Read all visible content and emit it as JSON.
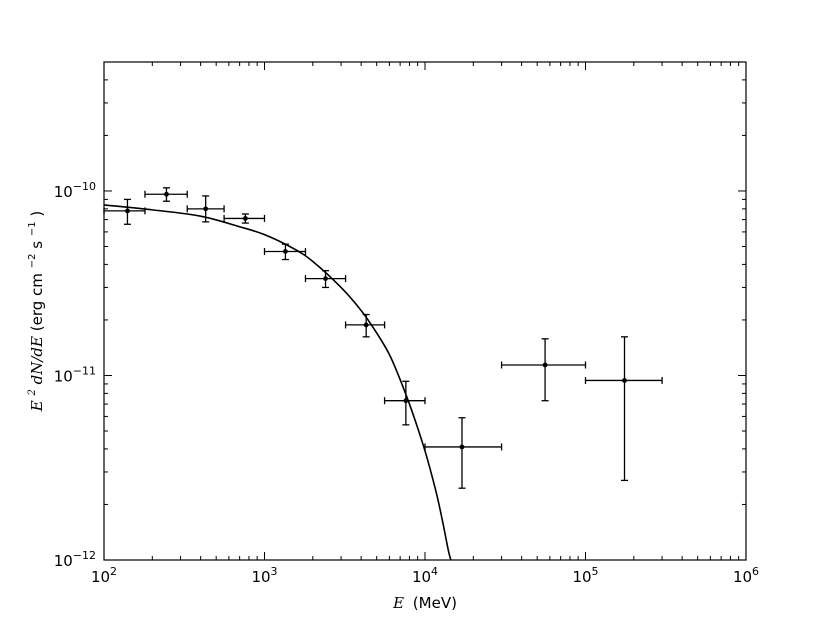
{
  "chart_data": {
    "type": "scatter",
    "xlabel": {
      "symbol": "E",
      "unit": "(MeV)"
    },
    "ylabel": {
      "symbol": "E",
      "sup": "2",
      "rest": " dN/dE",
      "unit_prefix": " (erg cm",
      "unit_exp1": "−2",
      "unit_mid": " s",
      "unit_exp2": "−1",
      "unit_suffix": ")"
    },
    "x_scale": "log",
    "y_scale": "log",
    "xlim": [
      100,
      1000000
    ],
    "ylim": [
      1e-12,
      5e-10
    ],
    "x_ticks": [
      {
        "value": 100,
        "base": "10",
        "exp": "2"
      },
      {
        "value": 1000,
        "base": "10",
        "exp": "3"
      },
      {
        "value": 10000,
        "base": "10",
        "exp": "4"
      },
      {
        "value": 100000,
        "base": "10",
        "exp": "5"
      },
      {
        "value": 1000000,
        "base": "10",
        "exp": "6"
      }
    ],
    "y_ticks": [
      {
        "value": 1e-12,
        "base": "10",
        "exp": "−12"
      },
      {
        "value": 1e-11,
        "base": "10",
        "exp": "−11"
      },
      {
        "value": 1e-10,
        "base": "10",
        "exp": "−10"
      }
    ],
    "grid": false,
    "points": [
      {
        "x": 140,
        "xlo": 100,
        "xhi": 180,
        "y": 7.8e-11,
        "ylo": 6.6e-11,
        "yhi": 9e-11
      },
      {
        "x": 245,
        "xlo": 180,
        "xhi": 330,
        "y": 9.6e-11,
        "ylo": 8.8e-11,
        "yhi": 1.04e-10
      },
      {
        "x": 430,
        "xlo": 330,
        "xhi": 560,
        "y": 8e-11,
        "ylo": 6.8e-11,
        "yhi": 9.4e-11
      },
      {
        "x": 760,
        "xlo": 560,
        "xhi": 1000,
        "y": 7.1e-11,
        "ylo": 6.7e-11,
        "yhi": 7.5e-11
      },
      {
        "x": 1350,
        "xlo": 1000,
        "xhi": 1800,
        "y": 4.7e-11,
        "ylo": 4.25e-11,
        "yhi": 5.15e-11
      },
      {
        "x": 2400,
        "xlo": 1800,
        "xhi": 3200,
        "y": 3.35e-11,
        "ylo": 3e-11,
        "yhi": 3.7e-11
      },
      {
        "x": 4300,
        "xlo": 3200,
        "xhi": 5600,
        "y": 1.88e-11,
        "ylo": 1.62e-11,
        "yhi": 2.14e-11
      },
      {
        "x": 7600,
        "xlo": 5600,
        "xhi": 10000,
        "y": 7.3e-12,
        "ylo": 5.4e-12,
        "yhi": 9.3e-12
      },
      {
        "x": 17000,
        "xlo": 10000,
        "xhi": 30000,
        "y": 4.1e-12,
        "ylo": 2.45e-12,
        "yhi": 5.9e-12
      },
      {
        "x": 56000,
        "xlo": 30000,
        "xhi": 100000,
        "y": 1.14e-11,
        "ylo": 7.3e-12,
        "yhi": 1.58e-11
      },
      {
        "x": 175000,
        "xlo": 100000,
        "xhi": 300000,
        "y": 9.4e-12,
        "ylo": 2.7e-12,
        "yhi": 1.62e-11
      }
    ],
    "fit_curve": [
      {
        "x": 100,
        "y": 8.4e-11
      },
      {
        "x": 200,
        "y": 7.9e-11
      },
      {
        "x": 400,
        "y": 7.3e-11
      },
      {
        "x": 700,
        "y": 6.4e-11
      },
      {
        "x": 1000,
        "y": 5.8e-11
      },
      {
        "x": 1500,
        "y": 4.9e-11
      },
      {
        "x": 2000,
        "y": 4.15e-11
      },
      {
        "x": 3000,
        "y": 3e-11
      },
      {
        "x": 4000,
        "y": 2.25e-11
      },
      {
        "x": 5000,
        "y": 1.7e-11
      },
      {
        "x": 6000,
        "y": 1.3e-11
      },
      {
        "x": 7000,
        "y": 9.5e-12
      },
      {
        "x": 8000,
        "y": 7e-12
      },
      {
        "x": 9000,
        "y": 5.2e-12
      },
      {
        "x": 10000,
        "y": 3.9e-12
      },
      {
        "x": 11000,
        "y": 2.9e-12
      },
      {
        "x": 12000,
        "y": 2.15e-12
      },
      {
        "x": 13000,
        "y": 1.55e-12
      },
      {
        "x": 14000,
        "y": 1.12e-12
      },
      {
        "x": 14500,
        "y": 1e-12
      }
    ],
    "colors": {
      "marker": "#000000",
      "curve": "#000000",
      "axes": "#000000"
    }
  }
}
